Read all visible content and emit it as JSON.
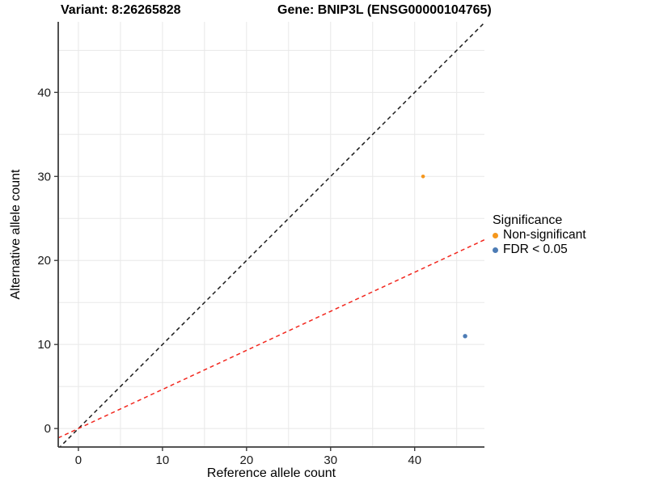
{
  "header": {
    "variant": "Variant: 8:26265828",
    "gene": "Gene: BNIP3L (ENSG00000104765)"
  },
  "legend": {
    "title": "Significance",
    "items": [
      {
        "label": "Non-significant",
        "color": "#F5971D"
      },
      {
        "label": "FDR < 0.05",
        "color": "#4D7CB5"
      }
    ]
  },
  "chart_data": {
    "type": "scatter",
    "title": "Variant: 8:26265828  Gene: BNIP3L (ENSG00000104765)",
    "xlabel": "Reference allele count",
    "ylabel": "Alternative allele count",
    "xlim": [
      -2.4,
      48.3
    ],
    "ylim": [
      -2.2,
      48.4
    ],
    "xticks": [
      0,
      10,
      20,
      30,
      40
    ],
    "yticks": [
      0,
      10,
      20,
      30,
      40
    ],
    "grid": true,
    "grid_x": [
      0,
      5,
      10,
      15,
      20,
      25,
      30,
      35,
      40,
      45
    ],
    "grid_y": [
      0,
      5,
      10,
      15,
      20,
      25,
      30,
      35,
      40,
      45
    ],
    "legend_position": "right",
    "points": [
      {
        "x": 41,
        "y": 30,
        "significance": "Non-significant",
        "color": "#F5971D",
        "r": 2.3
      },
      {
        "x": 46,
        "y": 11,
        "significance": "FDR < 0.05",
        "color": "#4D7CB5",
        "r": 2.7
      }
    ],
    "lines": [
      {
        "name": "identity-line",
        "slope": 1,
        "intercept": 0,
        "color": "#1C1C1C",
        "dash": "5,4"
      },
      {
        "name": "expected-ratio-line",
        "slope": 0.465,
        "intercept": 0,
        "color": "#F2271E",
        "dash": "5,4"
      }
    ],
    "colors": {
      "grid": "#E8E8E8",
      "axis": "#3C3C3C",
      "tick_label": "#1A1A1A"
    }
  }
}
